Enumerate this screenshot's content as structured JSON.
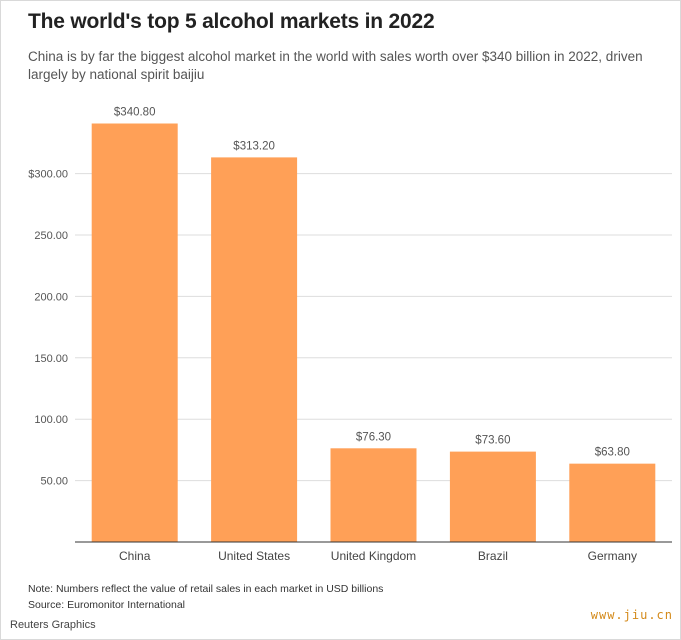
{
  "title": "The world's top 5 alcohol markets in 2022",
  "subtitle": "China is by far the biggest alcohol market in the world with sales worth over $340 billion in 2022, driven largely by national spirit baijiu",
  "note": "Note: Numbers reflect the value of retail sales in each market in USD billions",
  "source": "Source: Euromonitor International",
  "credit": "Reuters Graphics",
  "watermark": "www.jiu.cn",
  "colors": {
    "bar": "#FFA057",
    "grid": "#dddddd",
    "axis": "#333333"
  },
  "chart_data": {
    "type": "bar",
    "categories": [
      "China",
      "United States",
      "United Kingdom",
      "Brazil",
      "Germany"
    ],
    "values": [
      340.8,
      313.2,
      76.3,
      73.6,
      63.8
    ],
    "value_labels": [
      "$340.80",
      "$313.20",
      "$76.30",
      "$73.60",
      "$63.80"
    ],
    "yticks": [
      50,
      100,
      150,
      200,
      250,
      300
    ],
    "ytick_labels": [
      "50.00",
      "100.00",
      "150.00",
      "200.00",
      "250.00",
      "$300.00"
    ],
    "ylim": [
      0,
      350
    ],
    "grid": true,
    "xlabel": "",
    "ylabel": ""
  }
}
